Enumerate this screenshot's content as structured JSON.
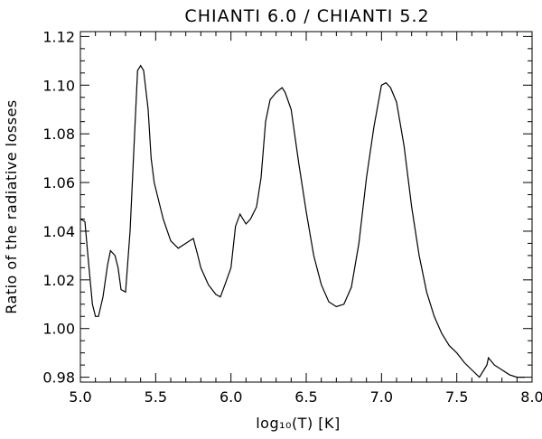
{
  "chart_data": {
    "type": "line",
    "title": "CHIANTI 6.0 / CHIANTI 5.2",
    "xlabel": "log₁₀(T) [K]",
    "ylabel": "Ratio of the radiative losses",
    "xlim": [
      5.0,
      8.0
    ],
    "ylim": [
      0.978,
      1.122
    ],
    "xticks": [
      5.0,
      5.5,
      6.0,
      6.5,
      7.0,
      7.5,
      8.0
    ],
    "xtick_labels": [
      "5.0",
      "5.5",
      "6.0",
      "6.5",
      "7.0",
      "7.5",
      "8.0"
    ],
    "yticks": [
      0.98,
      1.0,
      1.02,
      1.04,
      1.06,
      1.08,
      1.1,
      1.12
    ],
    "ytick_labels": [
      "0.98",
      "1.00",
      "1.02",
      "1.04",
      "1.06",
      "1.08",
      "1.10",
      "1.12"
    ],
    "grid": false,
    "line_color": "#000000",
    "series": [
      {
        "x": [
          5.0,
          5.03,
          5.05,
          5.08,
          5.1,
          5.12,
          5.15,
          5.18,
          5.2,
          5.23,
          5.25,
          5.27,
          5.3,
          5.33,
          5.36,
          5.38,
          5.4,
          5.42,
          5.45,
          5.47,
          5.49,
          5.51,
          5.55,
          5.6,
          5.65,
          5.7,
          5.75,
          5.78,
          5.8,
          5.85,
          5.9,
          5.93,
          5.96,
          6.0,
          6.03,
          6.06,
          6.1,
          6.13,
          6.17,
          6.2,
          6.23,
          6.26,
          6.3,
          6.34,
          6.36,
          6.4,
          6.45,
          6.5,
          6.55,
          6.6,
          6.65,
          6.7,
          6.75,
          6.8,
          6.85,
          6.9,
          6.95,
          7.0,
          7.03,
          7.06,
          7.1,
          7.15,
          7.2,
          7.25,
          7.3,
          7.35,
          7.4,
          7.45,
          7.5,
          7.55,
          7.6,
          7.65,
          7.7,
          7.71,
          7.75,
          7.8,
          7.85,
          7.9,
          7.95
        ],
        "y": [
          1.045,
          1.044,
          1.03,
          1.01,
          1.005,
          1.005,
          1.013,
          1.026,
          1.032,
          1.03,
          1.025,
          1.016,
          1.015,
          1.04,
          1.08,
          1.106,
          1.108,
          1.106,
          1.09,
          1.07,
          1.06,
          1.055,
          1.045,
          1.036,
          1.033,
          1.035,
          1.037,
          1.03,
          1.025,
          1.018,
          1.014,
          1.013,
          1.018,
          1.025,
          1.042,
          1.047,
          1.043,
          1.045,
          1.05,
          1.062,
          1.085,
          1.094,
          1.097,
          1.099,
          1.097,
          1.09,
          1.068,
          1.048,
          1.03,
          1.018,
          1.011,
          1.009,
          1.01,
          1.017,
          1.035,
          1.062,
          1.083,
          1.1,
          1.101,
          1.099,
          1.093,
          1.075,
          1.05,
          1.03,
          1.015,
          1.005,
          0.998,
          0.993,
          0.99,
          0.986,
          0.983,
          0.98,
          0.985,
          0.988,
          0.985,
          0.983,
          0.981,
          0.98,
          0.98
        ]
      }
    ]
  }
}
